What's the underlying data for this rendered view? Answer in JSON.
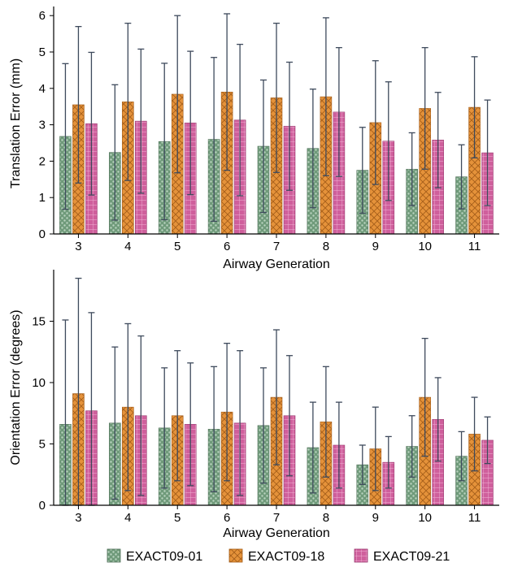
{
  "chart_data": [
    {
      "type": "bar",
      "title": "",
      "xlabel": "Airway Generation",
      "ylabel": "Translation Error (mm)",
      "categories": [
        "3",
        "4",
        "5",
        "6",
        "7",
        "8",
        "9",
        "10",
        "11"
      ],
      "ylim": [
        0,
        6.25
      ],
      "yticks": [
        0,
        1,
        2,
        3,
        4,
        5,
        6
      ],
      "grid": false,
      "series": [
        {
          "name": "EXACT09-01",
          "values": [
            2.68,
            2.24,
            2.54,
            2.6,
            2.41,
            2.35,
            1.75,
            1.78,
            1.57
          ],
          "err": [
            2.0,
            1.86,
            2.15,
            2.25,
            1.82,
            1.63,
            1.18,
            1.0,
            0.88
          ]
        },
        {
          "name": "EXACT09-18",
          "values": [
            3.55,
            3.63,
            3.84,
            3.9,
            3.74,
            3.77,
            3.06,
            3.45,
            3.48
          ],
          "err": [
            2.15,
            2.16,
            2.16,
            2.15,
            2.05,
            2.17,
            1.7,
            1.67,
            1.39
          ]
        },
        {
          "name": "EXACT09-21",
          "values": [
            3.03,
            3.1,
            3.05,
            3.13,
            2.96,
            3.35,
            2.55,
            2.58,
            2.23
          ],
          "err": [
            1.96,
            1.98,
            1.97,
            2.08,
            1.76,
            1.77,
            1.63,
            1.31,
            1.45
          ]
        }
      ]
    },
    {
      "type": "bar",
      "title": "",
      "xlabel": "Airway Generation",
      "ylabel": "Orientation Error (degrees)",
      "categories": [
        "3",
        "4",
        "5",
        "6",
        "7",
        "8",
        "9",
        "10",
        "11"
      ],
      "ylim": [
        0,
        19.2
      ],
      "yticks": [
        0,
        5,
        10,
        15
      ],
      "grid": false,
      "series": [
        {
          "name": "EXACT09-01",
          "values": [
            6.6,
            6.7,
            6.3,
            6.2,
            6.5,
            4.7,
            3.3,
            4.8,
            4.0
          ],
          "err": [
            8.5,
            6.2,
            4.9,
            5.1,
            4.7,
            3.7,
            1.6,
            2.5,
            2.0
          ]
        },
        {
          "name": "EXACT09-18",
          "values": [
            9.1,
            8.0,
            7.3,
            7.6,
            8.8,
            6.8,
            4.6,
            8.8,
            5.8
          ],
          "err": [
            9.4,
            6.8,
            5.3,
            5.6,
            5.5,
            4.5,
            3.4,
            4.8,
            3.0
          ]
        },
        {
          "name": "EXACT09-21",
          "values": [
            7.7,
            7.3,
            6.6,
            6.7,
            7.3,
            4.9,
            3.5,
            7.0,
            5.3
          ],
          "err": [
            8.0,
            6.5,
            5.0,
            5.9,
            4.9,
            3.5,
            2.1,
            3.4,
            1.9
          ]
        }
      ]
    }
  ],
  "legend": {
    "placement": "bottom",
    "items": [
      "EXACT09-01",
      "EXACT09-18",
      "EXACT09-21"
    ]
  },
  "colors": {
    "EXACT09-01": "#6f9a7a",
    "EXACT09-18": "#e5923a",
    "EXACT09-21": "#cf5f9c",
    "errorbar": "#3e4a5c"
  }
}
